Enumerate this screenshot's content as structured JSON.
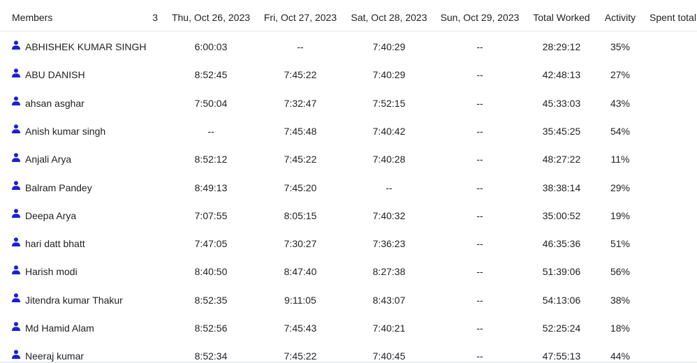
{
  "header": {
    "members": "Members",
    "count": "3",
    "days": [
      "Thu, Oct 26, 2023",
      "Fri, Oct 27, 2023",
      "Sat, Oct 28, 2023",
      "Sun, Oct 29, 2023"
    ],
    "total_worked": "Total Worked",
    "activity": "Activity",
    "spent_total": "Spent total"
  },
  "icon": {
    "name": "user-icon",
    "color": "#1a1fd6"
  },
  "rows": [
    {
      "name": "ABHISHEK KUMAR SINGH",
      "d1": "6:00:03",
      "d2": "--",
      "d3": "7:40:29",
      "d4": "--",
      "total": "28:29:12",
      "activity": "35%"
    },
    {
      "name": "ABU DANISH",
      "d1": "8:52:45",
      "d2": "7:45:22",
      "d3": "7:40:29",
      "d4": "--",
      "total": "42:48:13",
      "activity": "27%"
    },
    {
      "name": "ahsan asghar",
      "d1": "7:50:04",
      "d2": "7:32:47",
      "d3": "7:52:15",
      "d4": "--",
      "total": "45:33:03",
      "activity": "43%"
    },
    {
      "name": "Anish kumar singh",
      "d1": "--",
      "d2": "7:45:48",
      "d3": "7:40:42",
      "d4": "--",
      "total": "35:45:25",
      "activity": "54%"
    },
    {
      "name": "Anjali Arya",
      "d1": "8:52:12",
      "d2": "7:45:22",
      "d3": "7:40:28",
      "d4": "--",
      "total": "48:27:22",
      "activity": "11%"
    },
    {
      "name": "Balram Pandey",
      "d1": "8:49:13",
      "d2": "7:45:20",
      "d3": "--",
      "d4": "--",
      "total": "38:38:14",
      "activity": "29%"
    },
    {
      "name": "Deepa Arya",
      "d1": "7:07:55",
      "d2": "8:05:15",
      "d3": "7:40:32",
      "d4": "--",
      "total": "35:00:52",
      "activity": "19%"
    },
    {
      "name": "hari datt bhatt",
      "d1": "7:47:05",
      "d2": "7:30:27",
      "d3": "7:36:23",
      "d4": "--",
      "total": "46:35:36",
      "activity": "51%"
    },
    {
      "name": "Harish modi",
      "d1": "8:40:50",
      "d2": "8:47:40",
      "d3": "8:27:38",
      "d4": "--",
      "total": "51:39:06",
      "activity": "56%"
    },
    {
      "name": "Jitendra kumar Thakur",
      "d1": "8:52:35",
      "d2": "9:11:05",
      "d3": "8:43:07",
      "d4": "--",
      "total": "54:13:06",
      "activity": "38%"
    },
    {
      "name": "Md Hamid Alam",
      "d1": "8:52:56",
      "d2": "7:45:43",
      "d3": "7:40:21",
      "d4": "--",
      "total": "52:25:24",
      "activity": "18%"
    },
    {
      "name": "Neeraj kumar",
      "d1": "8:52:34",
      "d2": "7:45:22",
      "d3": "7:40:45",
      "d4": "--",
      "total": "47:55:13",
      "activity": "44%"
    }
  ]
}
